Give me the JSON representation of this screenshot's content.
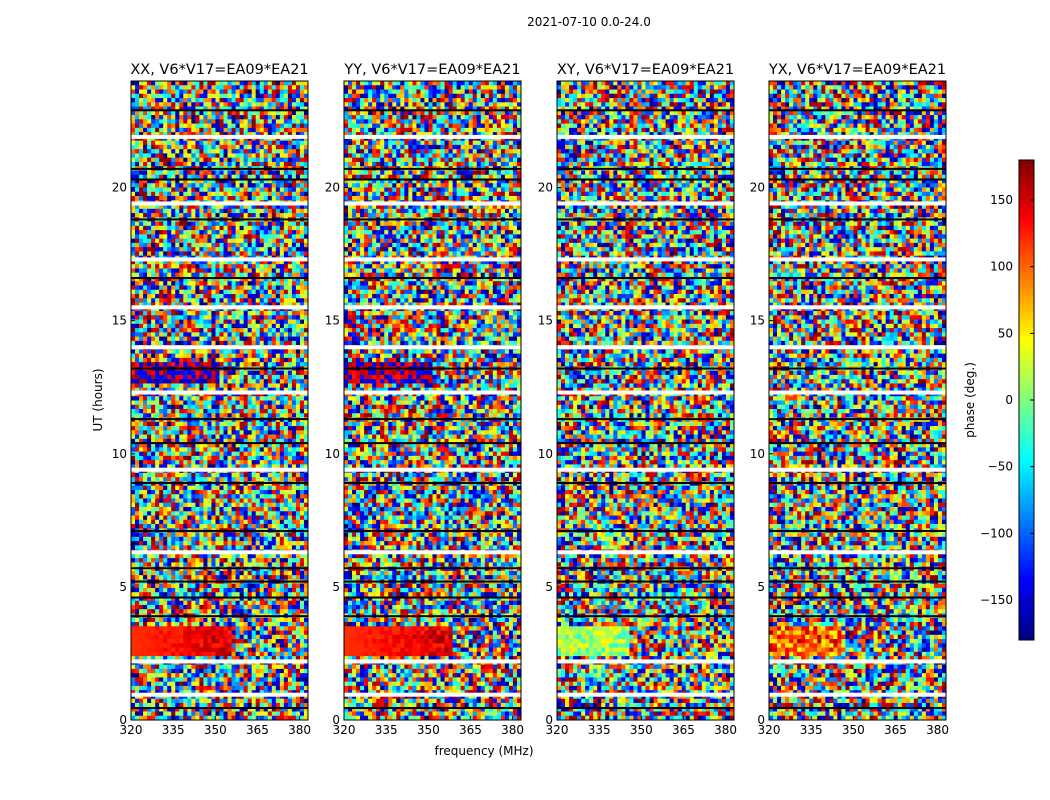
{
  "chart_data": {
    "type": "heatmap",
    "title": "2021-07-10 0.0-24.0",
    "xlabel": "frequency (MHz)",
    "ylabel": "UT (hours)",
    "xlim": [
      320,
      383
    ],
    "ylim": [
      0,
      24
    ],
    "xticks": [
      "320",
      "335",
      "350",
      "365",
      "380"
    ],
    "yticks": [
      "0",
      "5",
      "10",
      "15",
      "20"
    ],
    "colorbar": {
      "label": "phase (deg.)",
      "range": [
        -180,
        180
      ],
      "ticks": [
        "150",
        "100",
        "50",
        "0",
        "−50",
        "−100",
        "−150"
      ],
      "colormap": "jet"
    },
    "panels": [
      {
        "title": "XX, V6*V17=EA09*EA21"
      },
      {
        "title": "YY, V6*V17=EA09*EA21"
      },
      {
        "title": "XY, V6*V17=EA09*EA21"
      },
      {
        "title": "YX, V6*V17=EA09*EA21"
      }
    ]
  }
}
